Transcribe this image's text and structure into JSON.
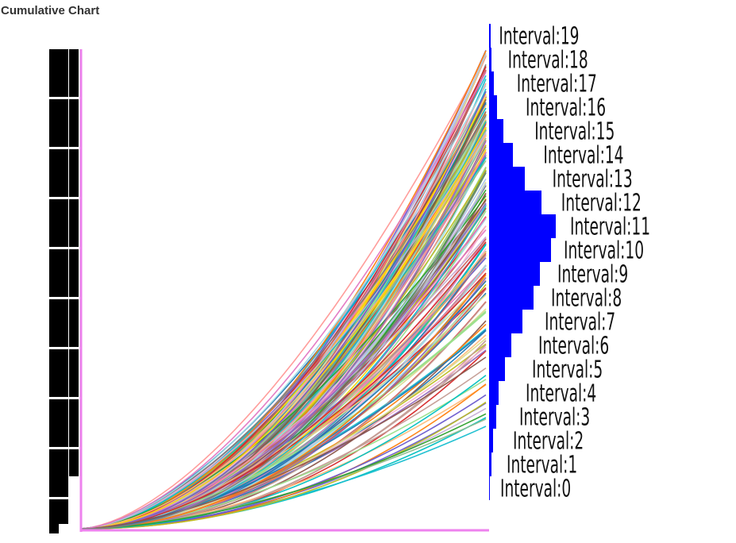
{
  "chart_data": {
    "type": "line",
    "title": "Cumulative Chart",
    "xlabel": "",
    "ylabel": "",
    "grid": false,
    "series_count": 200,
    "curve_model": "value = k * (t ^ p), t from 0 to 1",
    "series_exponent_range": [
      1.6,
      2.2
    ],
    "series_endpoint_range": [
      0.15,
      1.0
    ],
    "histogram": {
      "type": "bar",
      "orientation": "horizontal",
      "color": "#0000ff",
      "categories": [
        "Interval:0",
        "Interval:1",
        "Interval:2",
        "Interval:3",
        "Interval:4",
        "Interval:5",
        "Interval:6",
        "Interval:7",
        "Interval:8",
        "Interval:9",
        "Interval:10",
        "Interval:11",
        "Interval:12",
        "Interval:13",
        "Interval:14",
        "Interval:15",
        "Interval:16",
        "Interval:17",
        "Interval:18",
        "Interval:19"
      ],
      "values": [
        1,
        3,
        5,
        9,
        12,
        20,
        28,
        42,
        56,
        64,
        78,
        84,
        66,
        45,
        30,
        18,
        10,
        6,
        3,
        2
      ]
    }
  },
  "colors": {
    "axis": "#ee82ee",
    "dashed_bars": "#000000",
    "histogram": "#0000ff",
    "series_palette": [
      "#1f77b4",
      "#ff7f0e",
      "#2ca02c",
      "#d62728",
      "#9467bd",
      "#8c564b",
      "#e377c2",
      "#7f7f7f",
      "#bcbd22",
      "#17becf",
      "#ffbb78",
      "#98df8a",
      "#ff9896",
      "#c5b0d5",
      "#c49c94",
      "#f7b6d2",
      "#dbdb8d",
      "#9edae5",
      "#aec7e8",
      "#00c0c0",
      "#ffd700",
      "#8fbc8f",
      "#cd5c5c",
      "#6a5acd"
    ]
  }
}
